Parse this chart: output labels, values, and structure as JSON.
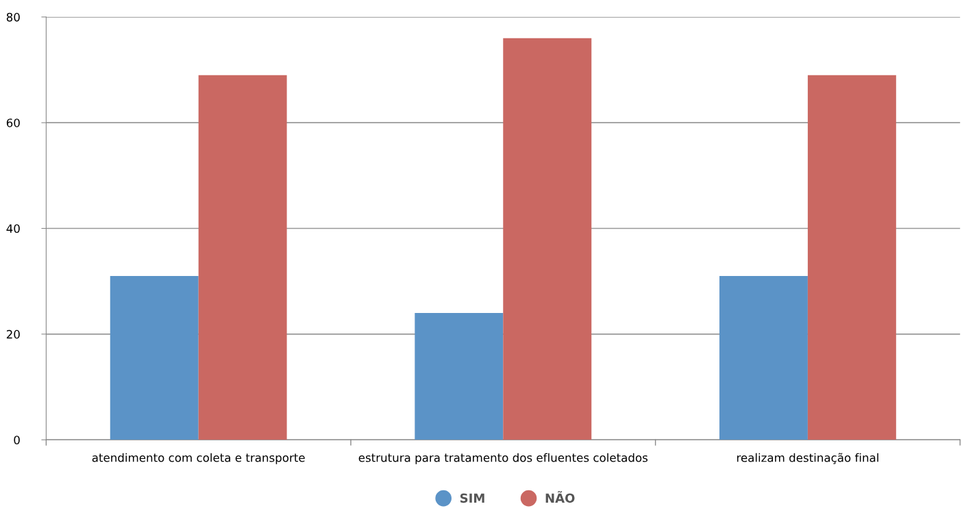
{
  "chart_data": {
    "type": "bar",
    "categories": [
      "atendimento com coleta e transporte",
      "estrutura para tratamento dos efluentes coletados",
      "realizam destinação final"
    ],
    "series": [
      {
        "name": "SIM",
        "color": "#5b93c7",
        "values": [
          31,
          24,
          31
        ]
      },
      {
        "name": "NÃO",
        "color": "#ca6862",
        "values": [
          69,
          76,
          69
        ]
      }
    ],
    "ylim": [
      0,
      80
    ],
    "yticks": [
      0,
      20,
      40,
      60,
      80
    ],
    "grid": "y",
    "legend": "bottom"
  }
}
